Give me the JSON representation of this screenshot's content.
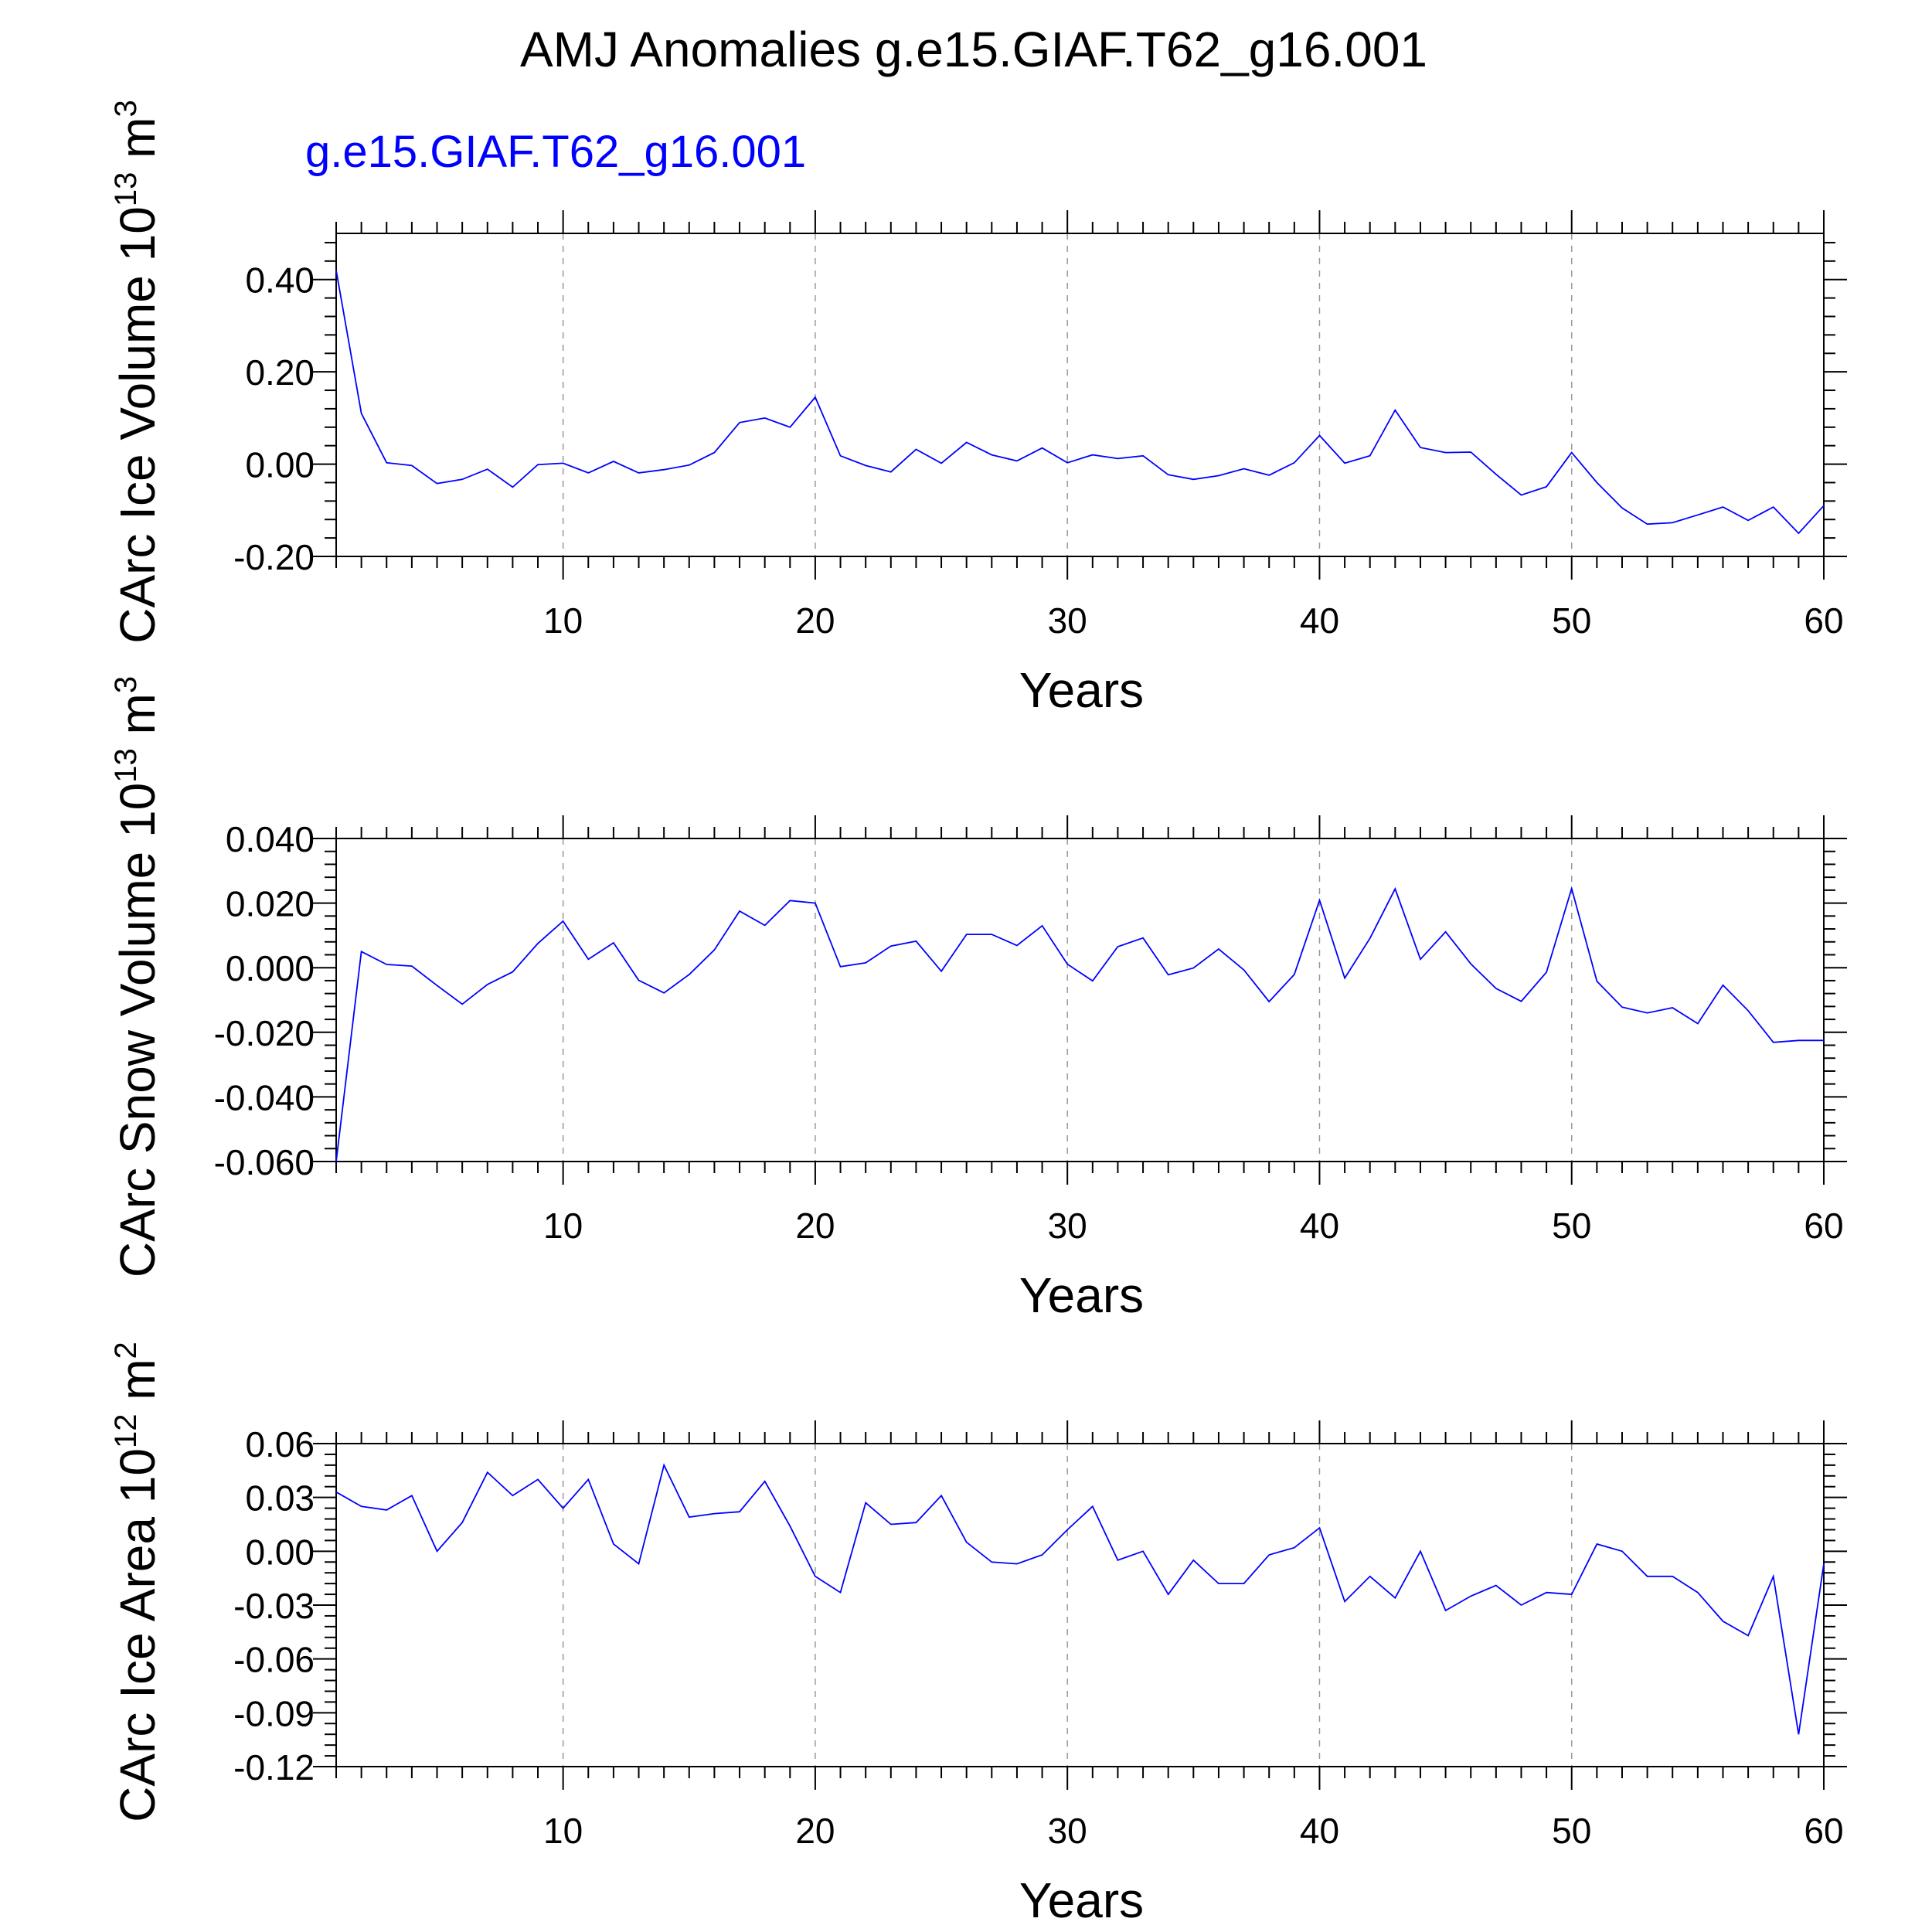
{
  "main_title": "AMJ Anomalies g.e15.GIAF.T62_g16.001",
  "case_label": "g.e15.GIAF.T62_g16.001",
  "colors": {
    "series": "#0000ff",
    "case_label": "#0000ff",
    "axes": "#000000",
    "grid": "#999999",
    "text": "#000000"
  },
  "chart_data": [
    {
      "type": "line",
      "ylabel_main": "CArc Ice Volume 10",
      "ylabel_exp": "13",
      "ylabel_unit": " m",
      "ylabel_unit_exp": "3",
      "xlabel": "Years",
      "xlim": [
        1,
        60
      ],
      "ylim": [
        -0.2,
        0.5
      ],
      "x_ticks": [
        10,
        20,
        30,
        40,
        50,
        60
      ],
      "x_tick_labels": [
        "10",
        "20",
        "30",
        "40",
        "50",
        "60"
      ],
      "y_ticks": [
        -0.2,
        0.0,
        0.2,
        0.4
      ],
      "y_tick_labels": [
        "-0.20",
        "0.00",
        "0.20",
        "0.40"
      ],
      "grid": "vertical dashed at major x ticks",
      "series": [
        {
          "name": "g.e15.GIAF.T62_g16.001",
          "color": "#0000ff",
          "x": [
            1,
            2,
            3,
            4,
            5,
            6,
            7,
            8,
            9,
            10,
            11,
            12,
            13,
            14,
            15,
            16,
            17,
            18,
            19,
            20,
            21,
            22,
            23,
            24,
            25,
            26,
            27,
            28,
            29,
            30,
            31,
            32,
            33,
            34,
            35,
            36,
            37,
            38,
            39,
            40,
            41,
            42,
            43,
            44,
            45,
            46,
            47,
            48,
            49,
            50,
            51,
            52,
            53,
            54,
            55,
            56,
            57,
            58,
            59,
            60
          ],
          "values": [
            0.42,
            0.11,
            0.003,
            -0.003,
            -0.042,
            -0.033,
            -0.011,
            -0.05,
            -0.001,
            0.002,
            -0.019,
            0.006,
            -0.019,
            -0.012,
            -0.002,
            0.025,
            0.09,
            0.1,
            0.08,
            0.145,
            0.018,
            -0.003,
            -0.017,
            0.032,
            0.002,
            0.047,
            0.02,
            0.007,
            0.035,
            0.003,
            0.02,
            0.012,
            0.018,
            -0.023,
            -0.033,
            -0.025,
            -0.01,
            -0.024,
            0.003,
            0.062,
            0.002,
            0.018,
            0.117,
            0.036,
            0.025,
            0.026,
            -0.022,
            -0.067,
            -0.049,
            0.025,
            -0.04,
            -0.095,
            -0.13,
            -0.127,
            -0.11,
            -0.093,
            -0.122,
            -0.093,
            -0.15,
            -0.09
          ]
        }
      ]
    },
    {
      "type": "line",
      "ylabel_main": "CArc Snow Volume 10",
      "ylabel_exp": "13",
      "ylabel_unit": " m",
      "ylabel_unit_exp": "3",
      "xlabel": "Years",
      "xlim": [
        1,
        60
      ],
      "ylim": [
        -0.06,
        0.04
      ],
      "x_ticks": [
        10,
        20,
        30,
        40,
        50,
        60
      ],
      "x_tick_labels": [
        "10",
        "20",
        "30",
        "40",
        "50",
        "60"
      ],
      "y_ticks": [
        -0.06,
        -0.04,
        -0.02,
        0.0,
        0.02,
        0.04
      ],
      "y_tick_labels": [
        "-0.060",
        "-0.040",
        "-0.020",
        "0.000",
        "0.020",
        "0.040"
      ],
      "grid": "vertical dashed at major x ticks",
      "series": [
        {
          "name": "g.e15.GIAF.T62_g16.001",
          "color": "#0000ff",
          "x": [
            1,
            2,
            3,
            4,
            5,
            6,
            7,
            8,
            9,
            10,
            11,
            12,
            13,
            14,
            15,
            16,
            17,
            18,
            19,
            20,
            21,
            22,
            23,
            24,
            25,
            26,
            27,
            28,
            29,
            30,
            31,
            32,
            33,
            34,
            35,
            36,
            37,
            38,
            39,
            40,
            41,
            42,
            43,
            44,
            45,
            46,
            47,
            48,
            49,
            50,
            51,
            52,
            53,
            54,
            55,
            56,
            57,
            58,
            59,
            60
          ],
          "values": [
            -0.06,
            0.005,
            0.001,
            0.0005,
            -0.0055,
            -0.0113,
            -0.0052,
            -0.0013,
            0.0075,
            0.0144,
            0.0026,
            0.0077,
            -0.0039,
            -0.0078,
            -0.0021,
            0.0055,
            0.0175,
            0.0131,
            0.0208,
            0.02,
            0.0003,
            0.0015,
            0.0067,
            0.0082,
            -0.0011,
            0.0103,
            0.0103,
            0.0069,
            0.013,
            0.0011,
            -0.0041,
            0.0065,
            0.0092,
            -0.0022,
            -0.0001,
            0.0058,
            -0.0007,
            -0.0105,
            -0.0021,
            0.0209,
            -0.0032,
            0.0091,
            0.0244,
            0.0026,
            0.0111,
            0.0012,
            -0.0064,
            -0.0104,
            -0.0014,
            0.0245,
            -0.0042,
            -0.0122,
            -0.014,
            -0.0124,
            -0.0173,
            -0.0054,
            -0.0133,
            -0.0231,
            -0.0225,
            -0.0225
          ]
        }
      ]
    },
    {
      "type": "line",
      "ylabel_main": "CArc Ice Area 10",
      "ylabel_exp": "12",
      "ylabel_unit": " m",
      "ylabel_unit_exp": "2",
      "xlabel": "Years",
      "xlim": [
        1,
        60
      ],
      "ylim": [
        -0.12,
        0.06
      ],
      "x_ticks": [
        10,
        20,
        30,
        40,
        50,
        60
      ],
      "x_tick_labels": [
        "10",
        "20",
        "30",
        "40",
        "50",
        "60"
      ],
      "y_ticks": [
        -0.12,
        -0.09,
        -0.06,
        -0.03,
        0.0,
        0.03,
        0.06
      ],
      "y_tick_labels": [
        "-0.12",
        "-0.09",
        "-0.06",
        "-0.03",
        "0.00",
        "0.03",
        "0.06"
      ],
      "grid": "vertical dashed at major x ticks",
      "series": [
        {
          "name": "g.e15.GIAF.T62_g16.001",
          "color": "#0000ff",
          "x": [
            1,
            2,
            3,
            4,
            5,
            6,
            7,
            8,
            9,
            10,
            11,
            12,
            13,
            14,
            15,
            16,
            17,
            18,
            19,
            20,
            21,
            22,
            23,
            24,
            25,
            26,
            27,
            28,
            29,
            30,
            31,
            32,
            33,
            34,
            35,
            36,
            37,
            38,
            39,
            40,
            41,
            42,
            43,
            44,
            45,
            46,
            47,
            48,
            49,
            50,
            51,
            52,
            53,
            54,
            55,
            56,
            57,
            58,
            59,
            60
          ],
          "values": [
            0.033,
            0.025,
            0.023,
            0.031,
            0.0,
            0.016,
            0.044,
            0.031,
            0.04,
            0.024,
            0.04,
            0.004,
            -0.007,
            0.048,
            0.019,
            0.021,
            0.022,
            0.039,
            0.014,
            -0.014,
            -0.023,
            0.027,
            0.015,
            0.016,
            0.031,
            0.005,
            -0.006,
            -0.007,
            -0.002,
            0.012,
            0.025,
            -0.005,
            0.0,
            -0.024,
            -0.005,
            -0.018,
            -0.018,
            -0.002,
            0.002,
            0.013,
            -0.028,
            -0.014,
            -0.026,
            0.0,
            -0.033,
            -0.025,
            -0.019,
            -0.03,
            -0.023,
            -0.024,
            0.004,
            0.0,
            -0.014,
            -0.014,
            -0.023,
            -0.039,
            -0.047,
            -0.014,
            -0.102,
            -0.007
          ]
        }
      ]
    }
  ]
}
